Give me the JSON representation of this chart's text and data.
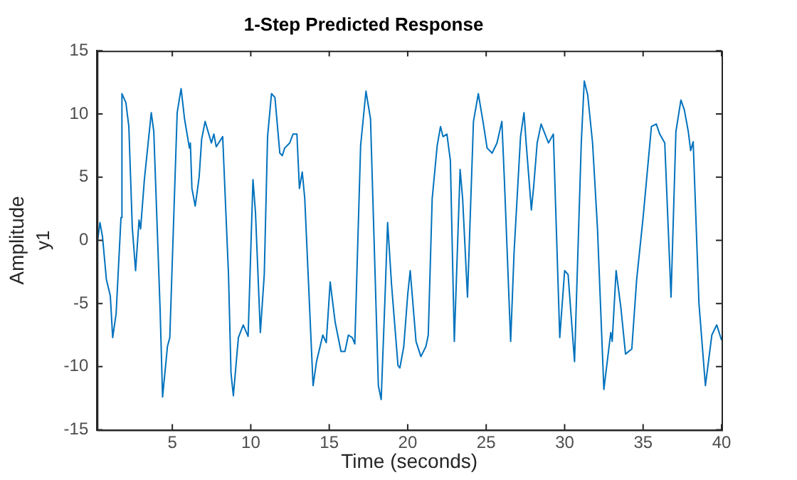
{
  "chart_data": {
    "type": "line",
    "title": "1-Step Predicted Response",
    "xlabel": "Time (seconds)",
    "ylabel": "Amplitude",
    "annotations": [
      "y1"
    ],
    "xlim": [
      0.2,
      40
    ],
    "ylim": [
      -15,
      15
    ],
    "xticks": [
      5,
      10,
      15,
      20,
      25,
      30,
      35,
      40
    ],
    "yticks": [
      -15,
      -10,
      -5,
      0,
      5,
      10,
      15
    ],
    "grid": false,
    "legend": false,
    "series": [
      {
        "color": "#0072bd",
        "x": [
          0.23,
          0.39,
          0.55,
          0.8,
          1.05,
          1.2,
          1.42,
          1.73,
          1.79,
          2.04,
          2.23,
          2.45,
          2.66,
          2.88,
          2.98,
          3.22,
          3.66,
          3.82,
          4.22,
          4.38,
          4.69,
          4.84,
          5.31,
          5.56,
          5.78,
          6.09,
          6.15,
          6.25,
          6.46,
          6.71,
          6.87,
          7.09,
          7.49,
          7.65,
          7.8,
          8.21,
          8.58,
          8.74,
          8.89,
          9.21,
          9.52,
          9.83,
          10.14,
          10.3,
          10.61,
          10.86,
          11.07,
          11.32,
          11.54,
          11.85,
          12.01,
          12.16,
          12.48,
          12.69,
          12.94,
          13.1,
          13.28,
          13.44,
          13.97,
          14.19,
          14.59,
          14.81,
          15.06,
          15.38,
          15.75,
          16.0,
          16.22,
          16.47,
          16.63,
          17.0,
          17.34,
          17.63,
          18.13,
          18.31,
          18.56,
          18.72,
          18.97,
          19.38,
          19.5,
          19.75,
          20.0,
          20.16,
          20.53,
          20.84,
          21.16,
          21.31,
          21.56,
          21.88,
          22.09,
          22.25,
          22.5,
          22.72,
          22.97,
          23.34,
          23.5,
          23.81,
          24.19,
          24.5,
          24.81,
          25.06,
          25.38,
          25.69,
          26.0,
          26.16,
          26.56,
          26.78,
          27.19,
          27.41,
          27.56,
          27.88,
          28.03,
          28.25,
          28.5,
          28.97,
          29.28,
          29.69,
          30.0,
          30.22,
          30.63,
          31.06,
          31.25,
          31.47,
          31.78,
          32.09,
          32.5,
          32.94,
          33.03,
          33.28,
          33.59,
          33.88,
          34.28,
          34.59,
          35.0,
          35.53,
          35.84,
          36.06,
          36.38,
          36.78,
          37.09,
          37.41,
          37.63,
          37.88,
          38.03,
          38.19,
          38.56,
          38.97,
          39.38,
          39.69,
          40.0
        ],
        "values": [
          -0.1,
          1.4,
          0.3,
          -3.1,
          -4.4,
          -7.7,
          -5.8,
          1.8,
          11.6,
          10.9,
          9.0,
          1.0,
          -2.4,
          1.6,
          0.9,
          4.8,
          10.1,
          8.6,
          -5.4,
          -12.4,
          -8.4,
          -7.7,
          10.1,
          12.0,
          9.6,
          7.3,
          7.7,
          4.1,
          2.7,
          5.0,
          8.0,
          9.4,
          7.7,
          8.4,
          7.4,
          8.2,
          -2.7,
          -10.5,
          -12.3,
          -7.7,
          -6.7,
          -7.6,
          4.8,
          2.2,
          -7.3,
          -2.7,
          8.2,
          11.6,
          11.3,
          6.9,
          6.7,
          7.3,
          7.7,
          8.4,
          8.4,
          4.1,
          5.4,
          3.3,
          -11.5,
          -9.6,
          -7.5,
          -8.1,
          -3.3,
          -6.5,
          -8.8,
          -8.8,
          -7.5,
          -7.7,
          -8.2,
          7.5,
          11.8,
          9.6,
          -11.5,
          -12.6,
          -4.3,
          1.4,
          -3.5,
          -9.9,
          -10.1,
          -8.4,
          -4.3,
          -2.4,
          -8.0,
          -9.2,
          -8.4,
          -7.5,
          3.3,
          7.5,
          9.0,
          8.2,
          8.4,
          6.3,
          -8.0,
          5.6,
          3.3,
          -4.5,
          9.4,
          11.6,
          9.3,
          7.3,
          6.9,
          7.7,
          9.4,
          4.8,
          -8.0,
          -0.9,
          8.2,
          10.1,
          7.5,
          2.4,
          4.3,
          7.7,
          9.2,
          7.7,
          8.4,
          -7.7,
          -2.4,
          -2.7,
          -9.6,
          7.7,
          12.6,
          11.5,
          7.7,
          1.0,
          -11.8,
          -7.3,
          -8.0,
          -2.4,
          -5.4,
          -9.0,
          -8.6,
          -3.1,
          1.8,
          9.0,
          9.2,
          8.4,
          7.7,
          -4.5,
          8.6,
          11.1,
          10.3,
          8.6,
          7.1,
          7.8,
          -5.0,
          -11.5,
          -7.5,
          -6.7,
          -7.9
        ]
      }
    ]
  }
}
